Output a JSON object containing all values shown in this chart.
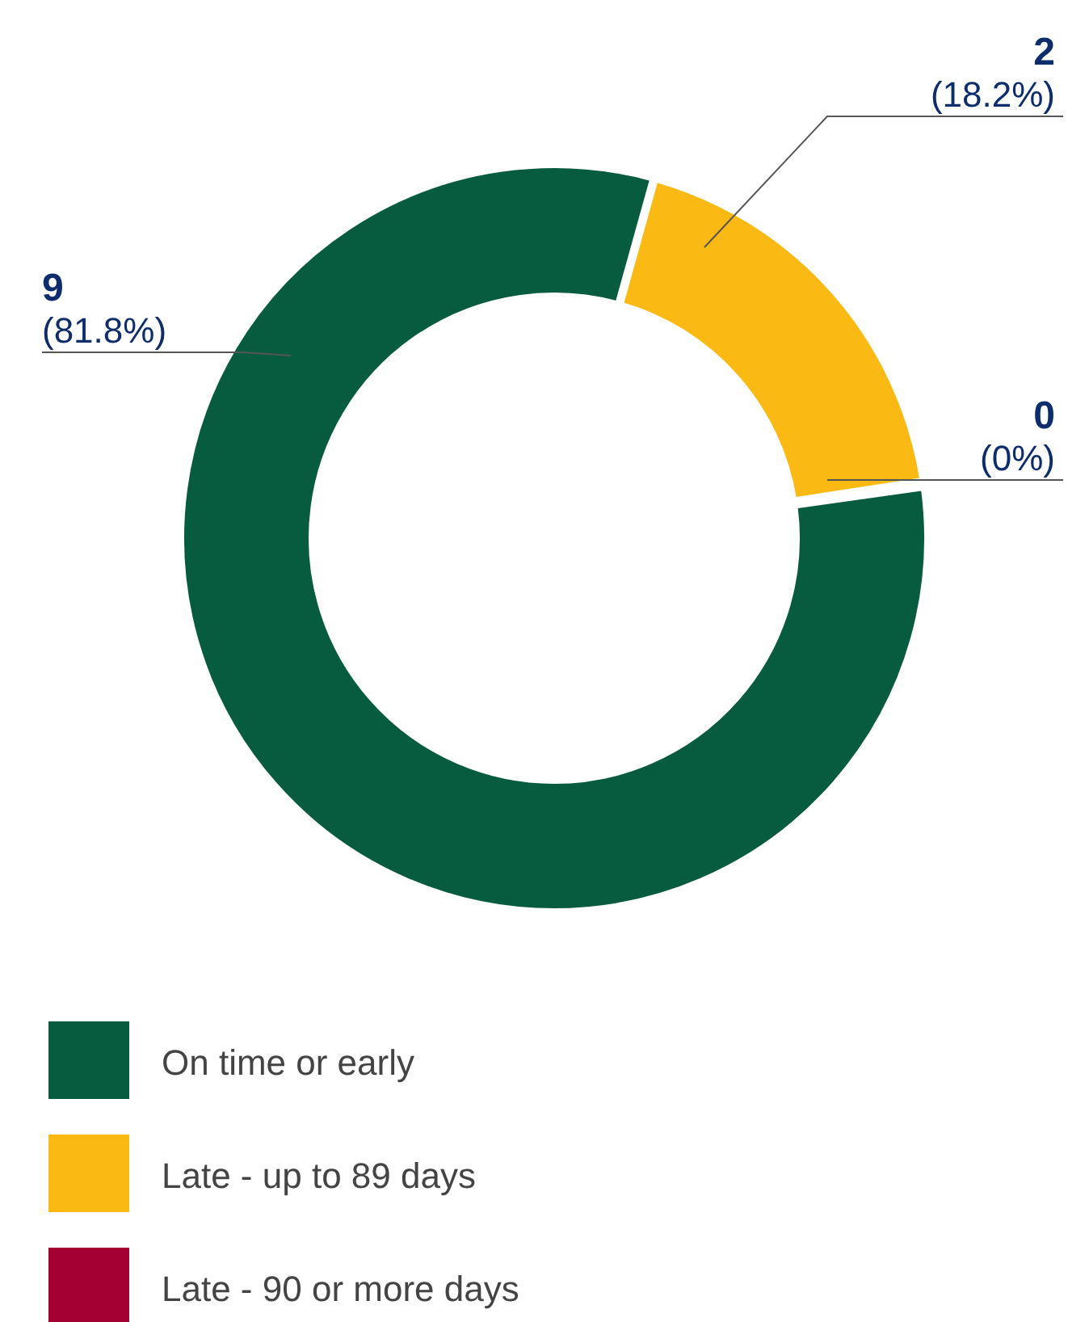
{
  "chart_data": {
    "type": "donut",
    "categories": [
      "On time or early",
      "Late - up to 89 days",
      "Late - 90 or more days"
    ],
    "values": [
      9,
      2,
      0
    ],
    "colors": [
      "#075c3f",
      "#fbb914",
      "#a50034"
    ],
    "value_labels": [
      "9 (81.8%)",
      "2 (18.2%)",
      "0 (0%)"
    ],
    "legend": "bottom"
  }
}
